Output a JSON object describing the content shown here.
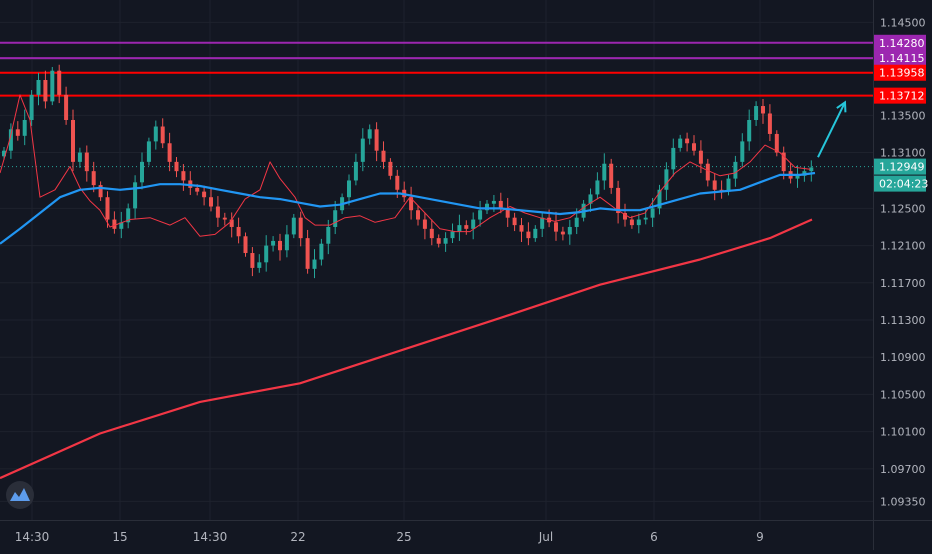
{
  "chart_data": {
    "type": "candlestick",
    "x_ticks": [
      "14:30",
      "15",
      "14:30",
      "22",
      "25",
      "Jul",
      "6",
      "9"
    ],
    "y_ticks": [
      "1.14500",
      "1.14100",
      "1.13500",
      "1.13100",
      "1.12500",
      "1.12100",
      "1.11700",
      "1.11300",
      "1.10900",
      "1.10500",
      "1.10100",
      "1.09700",
      "1.09350"
    ],
    "ylim": [
      1.0915,
      1.1474
    ],
    "grid": true,
    "horizontal_levels": [
      {
        "value": 1.1428,
        "label": "1.14280",
        "color": "#9c27b0"
      },
      {
        "value": 1.14115,
        "label": "1.14115",
        "color": "#9c27b0"
      },
      {
        "value": 1.13958,
        "label": "1.13958",
        "color": "#ff0000"
      },
      {
        "value": 1.13712,
        "label": "1.13712",
        "color": "#ff0000"
      }
    ],
    "last_price": {
      "value": 1.12949,
      "label": "1.12949",
      "countdown": "02:04:23",
      "color": "#26a69a"
    },
    "candle_close_path": [
      1.1312,
      1.1335,
      1.1328,
      1.1345,
      1.1372,
      1.1388,
      1.1365,
      1.1398,
      1.1372,
      1.1345,
      1.13,
      1.131,
      1.129,
      1.1275,
      1.1262,
      1.1238,
      1.1228,
      1.1235,
      1.125,
      1.1278,
      1.13,
      1.1322,
      1.1338,
      1.132,
      1.13,
      1.129,
      1.128,
      1.1272,
      1.1268,
      1.1262,
      1.1252,
      1.124,
      1.1238,
      1.123,
      1.122,
      1.1202,
      1.1186,
      1.1192,
      1.121,
      1.1215,
      1.1205,
      1.1222,
      1.124,
      1.1218,
      1.1185,
      1.1195,
      1.1212,
      1.123,
      1.1248,
      1.1262,
      1.128,
      1.13,
      1.1325,
      1.1335,
      1.1312,
      1.13,
      1.1285,
      1.127,
      1.1262,
      1.1248,
      1.1238,
      1.1228,
      1.1218,
      1.1212,
      1.1218,
      1.1225,
      1.1232,
      1.1228,
      1.1238,
      1.1248,
      1.1255,
      1.1258,
      1.125,
      1.124,
      1.1232,
      1.1225,
      1.1218,
      1.1228,
      1.124,
      1.1235,
      1.1225,
      1.1222,
      1.123,
      1.124,
      1.1255,
      1.1265,
      1.128,
      1.1298,
      1.1272,
      1.1245,
      1.1238,
      1.1232,
      1.1238,
      1.124,
      1.125,
      1.127,
      1.1292,
      1.1315,
      1.1325,
      1.132,
      1.1312,
      1.1298,
      1.128,
      1.127,
      1.1268,
      1.1282,
      1.13,
      1.1322,
      1.1345,
      1.136,
      1.1352,
      1.133,
      1.131,
      1.129,
      1.1282,
      1.1285,
      1.129,
      1.1294
    ],
    "moving_averages": [
      {
        "color": "#f23645",
        "points": [
          [
            0,
            1.1288
          ],
          [
            10,
            1.1325
          ],
          [
            20,
            1.1372
          ],
          [
            30,
            1.1345
          ],
          [
            40,
            1.1262
          ],
          [
            55,
            1.127
          ],
          [
            70,
            1.1295
          ],
          [
            80,
            1.1272
          ],
          [
            90,
            1.1258
          ],
          [
            100,
            1.1248
          ],
          [
            110,
            1.123
          ],
          [
            130,
            1.1238
          ],
          [
            150,
            1.124
          ],
          [
            170,
            1.1232
          ],
          [
            185,
            1.124
          ],
          [
            200,
            1.122
          ],
          [
            215,
            1.1222
          ],
          [
            230,
            1.1235
          ],
          [
            245,
            1.126
          ],
          [
            260,
            1.127
          ],
          [
            270,
            1.13
          ],
          [
            280,
            1.1282
          ],
          [
            295,
            1.1262
          ],
          [
            305,
            1.124
          ],
          [
            315,
            1.1232
          ],
          [
            330,
            1.1232
          ],
          [
            345,
            1.124
          ],
          [
            360,
            1.1242
          ],
          [
            375,
            1.1235
          ],
          [
            395,
            1.124
          ],
          [
            410,
            1.1262
          ],
          [
            425,
            1.1245
          ],
          [
            440,
            1.1228
          ],
          [
            455,
            1.1225
          ],
          [
            470,
            1.1225
          ],
          [
            490,
            1.124
          ],
          [
            510,
            1.1252
          ],
          [
            525,
            1.1245
          ],
          [
            540,
            1.124
          ],
          [
            555,
            1.1236
          ],
          [
            570,
            1.124
          ],
          [
            585,
            1.1252
          ],
          [
            600,
            1.1262
          ],
          [
            615,
            1.125
          ],
          [
            630,
            1.124
          ],
          [
            645,
            1.1245
          ],
          [
            660,
            1.1268
          ],
          [
            675,
            1.1288
          ],
          [
            690,
            1.13
          ],
          [
            705,
            1.1292
          ],
          [
            720,
            1.1285
          ],
          [
            735,
            1.1288
          ],
          [
            750,
            1.13
          ],
          [
            765,
            1.1318
          ],
          [
            780,
            1.131
          ],
          [
            795,
            1.1294
          ],
          [
            810,
            1.1292
          ]
        ]
      },
      {
        "color": "#2196f3",
        "points": [
          [
            0,
            1.1212
          ],
          [
            20,
            1.1228
          ],
          [
            40,
            1.1245
          ],
          [
            60,
            1.1262
          ],
          [
            80,
            1.127
          ],
          [
            100,
            1.1272
          ],
          [
            120,
            1.127
          ],
          [
            140,
            1.1272
          ],
          [
            160,
            1.1276
          ],
          [
            180,
            1.1276
          ],
          [
            200,
            1.1274
          ],
          [
            220,
            1.127
          ],
          [
            240,
            1.1266
          ],
          [
            260,
            1.1262
          ],
          [
            280,
            1.126
          ],
          [
            300,
            1.1256
          ],
          [
            320,
            1.1252
          ],
          [
            340,
            1.1254
          ],
          [
            360,
            1.126
          ],
          [
            380,
            1.1266
          ],
          [
            400,
            1.1266
          ],
          [
            420,
            1.1262
          ],
          [
            440,
            1.1258
          ],
          [
            460,
            1.1254
          ],
          [
            480,
            1.125
          ],
          [
            500,
            1.125
          ],
          [
            520,
            1.1248
          ],
          [
            540,
            1.1246
          ],
          [
            560,
            1.1244
          ],
          [
            580,
            1.1246
          ],
          [
            600,
            1.125
          ],
          [
            620,
            1.1248
          ],
          [
            640,
            1.1248
          ],
          [
            660,
            1.1254
          ],
          [
            680,
            1.126
          ],
          [
            700,
            1.1266
          ],
          [
            720,
            1.1268
          ],
          [
            740,
            1.127
          ],
          [
            760,
            1.1278
          ],
          [
            780,
            1.1286
          ],
          [
            800,
            1.1286
          ],
          [
            815,
            1.1288
          ]
        ]
      },
      {
        "color": "#f23645",
        "points": [
          [
            0,
            1.096
          ],
          [
            100,
            1.1008
          ],
          [
            200,
            1.1042
          ],
          [
            300,
            1.1062
          ],
          [
            400,
            1.1097
          ],
          [
            500,
            1.1132
          ],
          [
            600,
            1.1168
          ],
          [
            700,
            1.1195
          ],
          [
            770,
            1.1218
          ],
          [
            812,
            1.1238
          ]
        ]
      }
    ],
    "annotation_arrow": {
      "from": [
        818,
        1.1305
      ],
      "to": [
        845,
        1.1364
      ],
      "color": "#26c6da"
    }
  }
}
